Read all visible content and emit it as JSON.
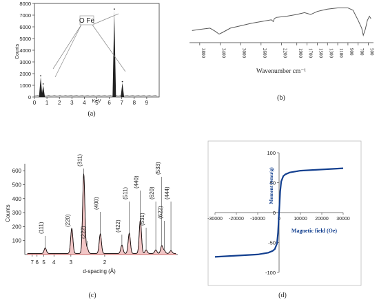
{
  "chart_data": [
    {
      "type": "bar",
      "panel_label": "(a)",
      "xlabel": "KeV",
      "ylabel": "Counts",
      "xlim": [
        0,
        10
      ],
      "ylim": [
        0,
        8000
      ],
      "xticks": [
        "0",
        "1",
        "2",
        "3",
        "4",
        "5",
        "6",
        "7",
        "8",
        "9"
      ],
      "yticks": [
        "0",
        "1000",
        "2000",
        "3000",
        "4000",
        "5000",
        "6000",
        "7000",
        "8000"
      ],
      "annotation": "O Fe",
      "peaks": [
        {
          "x": 0.5,
          "y": 1700,
          "element": "O"
        },
        {
          "x": 0.7,
          "y": 1000,
          "element": "Fe"
        },
        {
          "x": 6.4,
          "y": 7400,
          "element": "Fe"
        },
        {
          "x": 7.05,
          "y": 1200,
          "element": "Fe"
        }
      ]
    },
    {
      "type": "line",
      "panel_label": "(b)",
      "xlabel": "Wavenumber cm⁻¹",
      "xlim": [
        4000,
        400
      ],
      "xticks": [
        "3800",
        "3400",
        "3000",
        "2600",
        "2200",
        "1900",
        "1700",
        "1500",
        "1300",
        "1100",
        "900",
        "700",
        "500"
      ],
      "series": [
        {
          "x": [
            3950,
            3800,
            3600,
            3500,
            3420,
            3350,
            3200,
            3000,
            2800,
            2600,
            2400,
            2360,
            2340,
            2300,
            2100,
            1900,
            1750,
            1630,
            1600,
            1500,
            1400,
            1300,
            1100,
            900,
            800,
            700,
            630,
            600,
            560,
            520,
            480,
            450
          ],
          "y": [
            58,
            60,
            62,
            57,
            52,
            55,
            62,
            66,
            70,
            73,
            76,
            73,
            78,
            80,
            82,
            85,
            88,
            85,
            86,
            90,
            92,
            94,
            96,
            96,
            92,
            75,
            62,
            50,
            60,
            75,
            82,
            78
          ]
        }
      ]
    },
    {
      "type": "line",
      "panel_label": "(c)",
      "xlabel": "d-spacing (Å)",
      "ylabel": "Counts",
      "ylim": [
        0,
        650
      ],
      "yticks": [
        "100",
        "200",
        "300",
        "400",
        "500",
        "600"
      ],
      "xticks": [
        "7",
        "6",
        "5",
        "4",
        "3",
        "2"
      ],
      "peaks": [
        {
          "label": "(111)",
          "d": 4.83,
          "counts": 40
        },
        {
          "label": "(220)",
          "d": 2.96,
          "counts": 180
        },
        {
          "label": "(311)",
          "d": 2.52,
          "counts": 570
        },
        {
          "label": "(222)",
          "d": 2.42,
          "counts": 40
        },
        {
          "label": "(400)",
          "d": 2.09,
          "counts": 140
        },
        {
          "label": "(422)",
          "d": 1.71,
          "counts": 60
        },
        {
          "label": "(511)",
          "d": 1.61,
          "counts": 145
        },
        {
          "label": "(440)",
          "d": 1.48,
          "counts": 240
        },
        {
          "label": "(531)",
          "d": 1.42,
          "counts": 25
        },
        {
          "label": "(620)",
          "d": 1.33,
          "counts": 25
        },
        {
          "label": "(533)",
          "d": 1.28,
          "counts": 55
        },
        {
          "label": "(622)",
          "d": 1.26,
          "counts": 20
        },
        {
          "label": "(444)",
          "d": 1.21,
          "counts": 20
        }
      ]
    },
    {
      "type": "line",
      "panel_label": "(d)",
      "xlabel": "Magnetic field (Oe)",
      "ylabel": "Moment (emu/g)",
      "xlim": [
        -30000,
        30000
      ],
      "ylim": [
        -100,
        100
      ],
      "xticks": [
        "-30000",
        "-20000",
        "-10000",
        "0",
        "10000",
        "20000",
        "30000"
      ],
      "yticks": [
        "100",
        "50",
        "0",
        "-50",
        "-100"
      ],
      "series": [
        {
          "x": [
            -30000,
            -20000,
            -10000,
            -5000,
            -3000,
            -2000,
            -1000,
            -500,
            0,
            500,
            1000,
            2000,
            3000,
            5000,
            10000,
            20000,
            30000
          ],
          "y": [
            -74,
            -72,
            -70,
            -67,
            -64,
            -61,
            -52,
            -35,
            0,
            35,
            52,
            61,
            64,
            67,
            70,
            72,
            74
          ]
        }
      ]
    }
  ]
}
